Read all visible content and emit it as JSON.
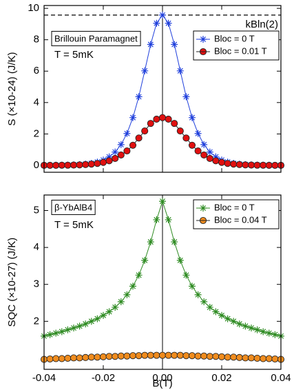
{
  "chart_data": [
    {
      "type": "line",
      "ylabel": "S (×10-24) (J/K)",
      "box_label": "Brillouin Paramagnet",
      "temp_label": "T = 5mK",
      "annotation": {
        "text": "kBln(2)",
        "value": 9.57
      },
      "legend": "upper right",
      "xlim": [
        -0.04,
        0.04
      ],
      "ylim": [
        -0.44,
        10.18
      ],
      "yticks": [
        0,
        2,
        4,
        6,
        8,
        10
      ],
      "x": [
        -0.04,
        -0.038,
        -0.036,
        -0.034,
        -0.032,
        -0.03,
        -0.028,
        -0.026,
        -0.024,
        -0.022,
        -0.02,
        -0.018,
        -0.016,
        -0.014,
        -0.012,
        -0.01,
        -0.008,
        -0.006,
        -0.004,
        -0.002,
        0,
        0.002,
        0.004,
        0.006,
        0.008,
        0.01,
        0.012,
        0.014,
        0.016,
        0.018,
        0.02,
        0.022,
        0.024,
        0.026,
        0.028,
        0.03,
        0.032,
        0.034,
        0.036,
        0.038,
        0.04
      ],
      "series": [
        {
          "name": "Bloc = 0 T",
          "color": "#1f3fdc",
          "marker": "star",
          "values": [
            0,
            0,
            0.01,
            0.01,
            0.02,
            0.03,
            0.05,
            0.08,
            0.13,
            0.21,
            0.34,
            0.54,
            0.85,
            1.32,
            2.03,
            3.04,
            4.37,
            6.02,
            7.7,
            9.05,
            9.57,
            9.05,
            7.7,
            6.02,
            4.37,
            3.04,
            2.03,
            1.32,
            0.85,
            0.54,
            0.34,
            0.21,
            0.13,
            0.08,
            0.05,
            0.03,
            0.02,
            0.01,
            0.01,
            0,
            0
          ]
        },
        {
          "name": "Bloc = 0.01 T",
          "color": "#e01010",
          "marker": "circle",
          "values": [
            0,
            0,
            0,
            0.01,
            0.01,
            0.02,
            0.03,
            0.05,
            0.08,
            0.12,
            0.19,
            0.29,
            0.44,
            0.66,
            0.92,
            1.28,
            1.74,
            2.19,
            2.67,
            2.94,
            3.04,
            2.94,
            2.67,
            2.19,
            1.74,
            1.28,
            0.92,
            0.66,
            0.44,
            0.29,
            0.19,
            0.12,
            0.08,
            0.05,
            0.03,
            0.02,
            0.01,
            0.01,
            0,
            0,
            0
          ]
        }
      ]
    },
    {
      "type": "line",
      "ylabel": "SQC (×10-27) (J/K)",
      "xlabel": "B(T)",
      "box_label": "β-YbAlB4",
      "temp_label": "T = 5mK",
      "legend": "upper right",
      "xlim": [
        -0.04,
        0.04
      ],
      "ylim": [
        0.7,
        5.42
      ],
      "xticks": [
        -0.04,
        -0.02,
        {
          "value": 0,
          "label": "0.00"
        },
        0.02,
        0.04
      ],
      "yticks": [
        2,
        3,
        4,
        5
      ],
      "x": [
        -0.04,
        -0.038,
        -0.036,
        -0.034,
        -0.032,
        -0.03,
        -0.028,
        -0.026,
        -0.024,
        -0.022,
        -0.02,
        -0.018,
        -0.016,
        -0.014,
        -0.012,
        -0.01,
        -0.008,
        -0.006,
        -0.004,
        -0.002,
        0,
        0.002,
        0.004,
        0.006,
        0.008,
        0.01,
        0.012,
        0.014,
        0.016,
        0.018,
        0.02,
        0.022,
        0.024,
        0.026,
        0.028,
        0.03,
        0.032,
        0.034,
        0.036,
        0.038,
        0.04
      ],
      "series": [
        {
          "name": "Bloc = 0 T",
          "color": "#2e8b22",
          "marker": "star",
          "values": [
            1.6,
            1.64,
            1.68,
            1.72,
            1.77,
            1.82,
            1.87,
            1.93,
            2.0,
            2.07,
            2.16,
            2.26,
            2.38,
            2.53,
            2.72,
            2.95,
            3.25,
            3.65,
            4.15,
            4.75,
            5.25,
            4.75,
            4.15,
            3.65,
            3.25,
            2.95,
            2.72,
            2.53,
            2.38,
            2.26,
            2.16,
            2.07,
            2.0,
            1.93,
            1.87,
            1.82,
            1.77,
            1.72,
            1.68,
            1.64,
            1.6
          ]
        },
        {
          "name": "Bloc = 0.04 T",
          "color": "#f08c1e",
          "marker": "circle",
          "values": [
            0.97,
            0.98,
            0.99,
            0.99,
            1.0,
            1.01,
            1.01,
            1.02,
            1.03,
            1.03,
            1.04,
            1.05,
            1.05,
            1.06,
            1.06,
            1.07,
            1.07,
            1.08,
            1.08,
            1.08,
            1.08,
            1.08,
            1.08,
            1.08,
            1.07,
            1.07,
            1.06,
            1.06,
            1.05,
            1.05,
            1.04,
            1.03,
            1.03,
            1.02,
            1.01,
            1.01,
            1.0,
            0.99,
            0.99,
            0.98,
            0.97
          ]
        }
      ]
    }
  ]
}
